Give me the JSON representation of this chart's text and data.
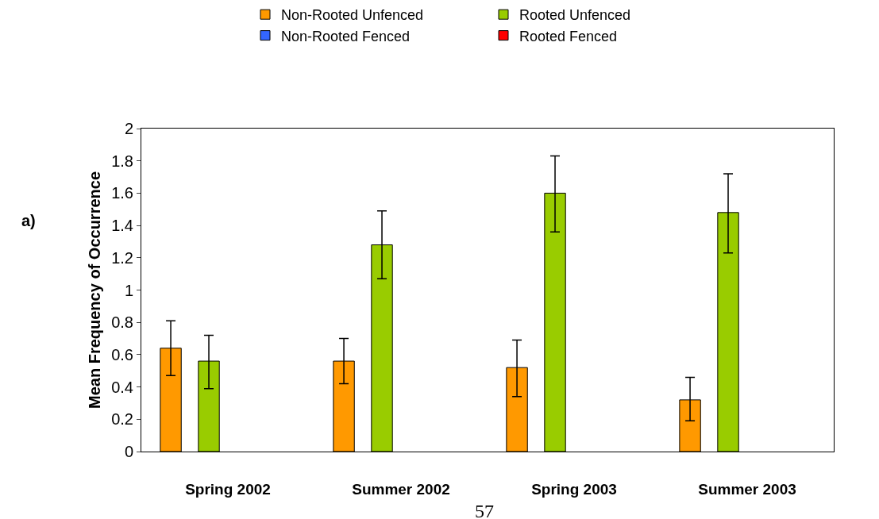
{
  "chart_data": {
    "type": "bar",
    "ylabel": "Mean Frequency of Occurrence",
    "categories": [
      "Spring 2002",
      "Summer 2002",
      "Spring 2003",
      "Summer 2003"
    ],
    "series": [
      {
        "name": "Non-Rooted Unfenced",
        "color": "#ff9900",
        "values": [
          0.64,
          0.56,
          0.52,
          0.32
        ],
        "errors": [
          [
            0.47,
            0.81
          ],
          [
            0.42,
            0.7
          ],
          [
            0.34,
            0.69
          ],
          [
            0.19,
            0.46
          ]
        ]
      },
      {
        "name": "Rooted Unfenced",
        "color": "#99cc00",
        "values": [
          0.56,
          1.28,
          1.6,
          1.48
        ],
        "errors": [
          [
            0.39,
            0.72
          ],
          [
            1.07,
            1.49
          ],
          [
            1.36,
            1.83
          ],
          [
            1.23,
            1.72
          ]
        ]
      },
      {
        "name": "Non-Rooted Fenced",
        "color": "#3366ff",
        "values": [
          null,
          null,
          null,
          null
        ]
      },
      {
        "name": "Rooted Fenced",
        "color": "#ff0000",
        "values": [
          null,
          null,
          null,
          null
        ]
      }
    ],
    "ylim": [
      0,
      2
    ],
    "yticks": [
      0,
      0.2,
      0.4,
      0.6,
      0.8,
      1,
      1.2,
      1.4,
      1.6,
      1.8,
      2
    ],
    "grid": false,
    "legend": "top",
    "annotations": [
      "a)",
      "57"
    ]
  }
}
